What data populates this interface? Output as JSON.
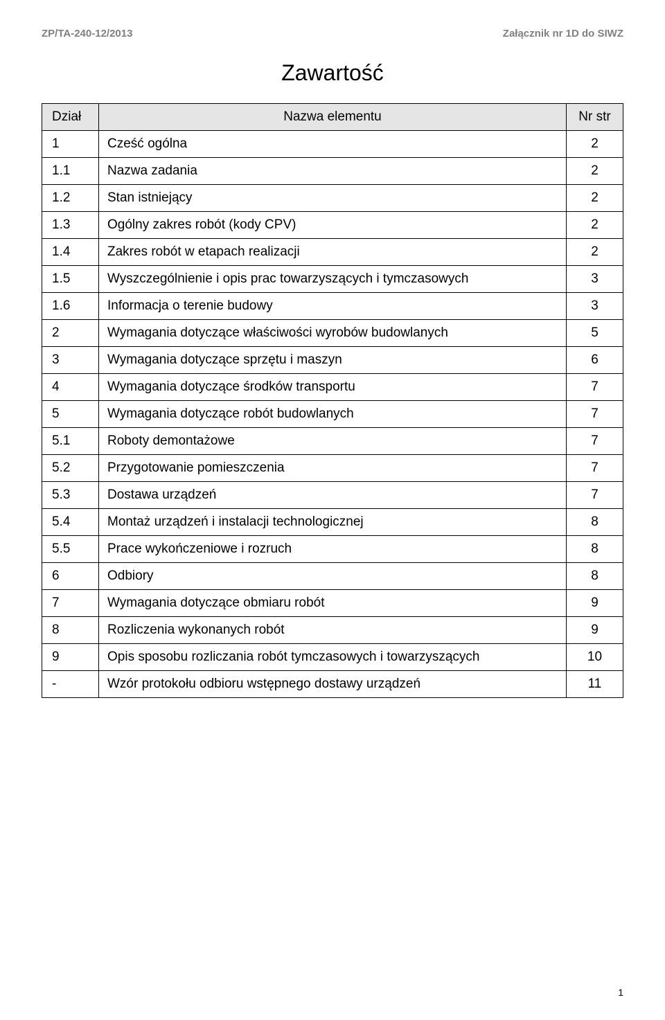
{
  "header": {
    "left": "ZP/TA-240-12/2013",
    "right": "Załącznik nr 1D  do SIWZ"
  },
  "title": "Zawartość",
  "table": {
    "headers": {
      "dzial": "Dział",
      "nazwa": "Nazwa elementu",
      "nrstr": "Nr str"
    },
    "rows": [
      {
        "dzial": "1",
        "nazwa": "Cześć ogólna",
        "nrstr": "2"
      },
      {
        "dzial": "1.1",
        "nazwa": "Nazwa zadania",
        "nrstr": "2"
      },
      {
        "dzial": "1.2",
        "nazwa": "Stan istniejący",
        "nrstr": "2"
      },
      {
        "dzial": "1.3",
        "nazwa": "Ogólny zakres robót (kody CPV)",
        "nrstr": "2"
      },
      {
        "dzial": "1.4",
        "nazwa": "Zakres robót w etapach realizacji",
        "nrstr": "2"
      },
      {
        "dzial": "1.5",
        "nazwa": "Wyszczególnienie i opis prac towarzyszących i tymczasowych",
        "nrstr": "3"
      },
      {
        "dzial": "1.6",
        "nazwa": "Informacja o terenie budowy",
        "nrstr": "3"
      },
      {
        "dzial": "2",
        "nazwa": "Wymagania dotyczące właściwości wyrobów budowlanych",
        "nrstr": "5"
      },
      {
        "dzial": "3",
        "nazwa": "Wymagania dotyczące sprzętu i maszyn",
        "nrstr": "6"
      },
      {
        "dzial": "4",
        "nazwa": "Wymagania dotyczące środków transportu",
        "nrstr": "7"
      },
      {
        "dzial": "5",
        "nazwa": "Wymagania dotyczące robót budowlanych",
        "nrstr": "7"
      },
      {
        "dzial": "5.1",
        "nazwa": "Roboty demontażowe",
        "nrstr": "7"
      },
      {
        "dzial": "5.2",
        "nazwa": "Przygotowanie pomieszczenia",
        "nrstr": "7"
      },
      {
        "dzial": "5.3",
        "nazwa": "Dostawa urządzeń",
        "nrstr": "7"
      },
      {
        "dzial": "5.4",
        "nazwa": "Montaż urządzeń i instalacji technologicznej",
        "nrstr": "8"
      },
      {
        "dzial": "5.5",
        "nazwa": "Prace wykończeniowe i rozruch",
        "nrstr": "8"
      },
      {
        "dzial": "6",
        "nazwa": "Odbiory",
        "nrstr": "8"
      },
      {
        "dzial": "7",
        "nazwa": "Wymagania dotyczące obmiaru robót",
        "nrstr": "9"
      },
      {
        "dzial": "8",
        "nazwa": "Rozliczenia wykonanych robót",
        "nrstr": "9"
      },
      {
        "dzial": "9",
        "nazwa": "Opis sposobu rozliczania robót tymczasowych i towarzyszących",
        "nrstr": "10"
      },
      {
        "dzial": "-",
        "nazwa": "Wzór protokołu odbioru wstępnego dostawy urządzeń",
        "nrstr": "11"
      }
    ]
  },
  "pageNumber": "1"
}
